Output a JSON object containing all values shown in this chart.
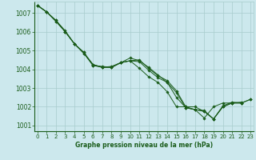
{
  "title": "Graphe pression niveau de la mer (hPa)",
  "xlim": [
    -0.3,
    23.3
  ],
  "ylim": [
    1000.7,
    1007.6
  ],
  "yticks": [
    1001,
    1002,
    1003,
    1004,
    1005,
    1006,
    1007
  ],
  "xticks": [
    0,
    1,
    2,
    3,
    4,
    5,
    6,
    7,
    8,
    9,
    10,
    11,
    12,
    13,
    14,
    15,
    16,
    17,
    18,
    19,
    20,
    21,
    22,
    23
  ],
  "bg_color": "#cce8ed",
  "grid_color": "#a8cccc",
  "line_color": "#1a5c1a",
  "marker_color": "#1a5c1a",
  "series": [
    [
      1007.4,
      1007.05,
      1006.6,
      1006.0,
      1005.35,
      1004.85,
      1004.2,
      1004.1,
      1004.1,
      1004.35,
      1004.45,
      1004.05,
      1003.6,
      1003.3,
      1002.8,
      1002.0,
      1002.0,
      1001.85,
      1001.4,
      1002.0,
      1002.2,
      1002.2,
      1002.25,
      null
    ],
    [
      1007.4,
      1007.05,
      1006.6,
      1006.05,
      1005.35,
      1004.9,
      1004.2,
      1004.15,
      1004.1,
      1004.35,
      1004.45,
      1004.5,
      1004.05,
      1003.65,
      1003.4,
      1002.85,
      1002.0,
      1002.0,
      1001.75,
      1001.35,
      1002.05,
      1002.25,
      1002.2,
      null
    ],
    [
      1007.4,
      1007.05,
      1006.55,
      1006.0,
      1005.35,
      1004.9,
      1004.25,
      1004.1,
      1004.15,
      1004.35,
      1004.45,
      1004.4,
      1003.95,
      1003.55,
      1003.3,
      1002.5,
      1001.95,
      1001.85,
      1001.75,
      1001.35,
      1002.0,
      1002.2,
      1002.2,
      1002.4
    ],
    [
      1007.4,
      1007.05,
      1006.55,
      1006.0,
      1005.35,
      1004.85,
      1004.25,
      1004.1,
      1004.1,
      1004.35,
      1004.6,
      1004.45,
      1004.1,
      1003.7,
      1003.3,
      1002.75,
      1001.95,
      1001.85,
      1001.8,
      1001.35,
      1002.0,
      1002.2,
      1002.2,
      1002.4
    ]
  ]
}
